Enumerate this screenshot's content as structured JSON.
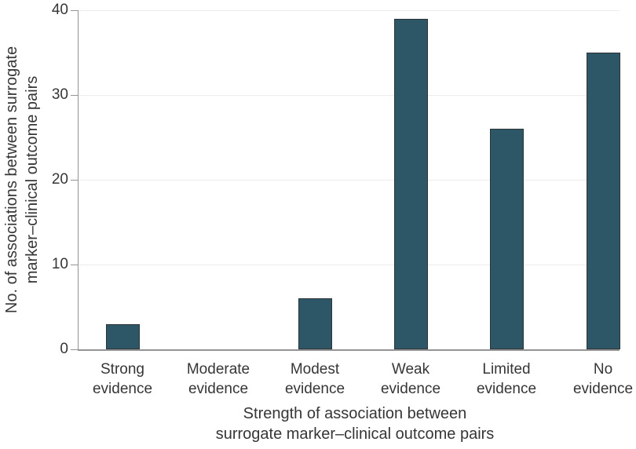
{
  "chart_data": {
    "type": "bar",
    "categories": [
      "Strong evidence",
      "Moderate evidence",
      "Modest evidence",
      "Weak evidence",
      "Limited evidence",
      "No evidence"
    ],
    "category_label_lines": [
      [
        "Strong",
        "evidence"
      ],
      [
        "Moderate",
        "evidence"
      ],
      [
        "Modest",
        "evidence"
      ],
      [
        "Weak",
        "evidence"
      ],
      [
        "Limited",
        "evidence"
      ],
      [
        "No",
        "evidence"
      ]
    ],
    "values": [
      3,
      0,
      6,
      39,
      26,
      35
    ],
    "title": "",
    "xlabel": "Strength of association between surrogate marker–clinical outcome pairs",
    "xlabel_lines": [
      "Strength of association between",
      "surrogate marker–clinical outcome pairs"
    ],
    "ylabel": "No. of associations between surrogate marker–clinical outcome pairs",
    "ylabel_lines": [
      "No. of associations between surrogate",
      "marker–clinical outcome pairs"
    ],
    "yticks": [
      0,
      10,
      20,
      30,
      40
    ],
    "ylim": [
      0,
      40
    ],
    "grid": "horizontal gridlines at y ticks",
    "legend": "none",
    "colors": {
      "bar_fill": "#2d5767",
      "bar_border": "#2c3438",
      "axis": "#949494",
      "gridline": "#ececec",
      "text": "#363636",
      "background": "#ffffff"
    }
  }
}
